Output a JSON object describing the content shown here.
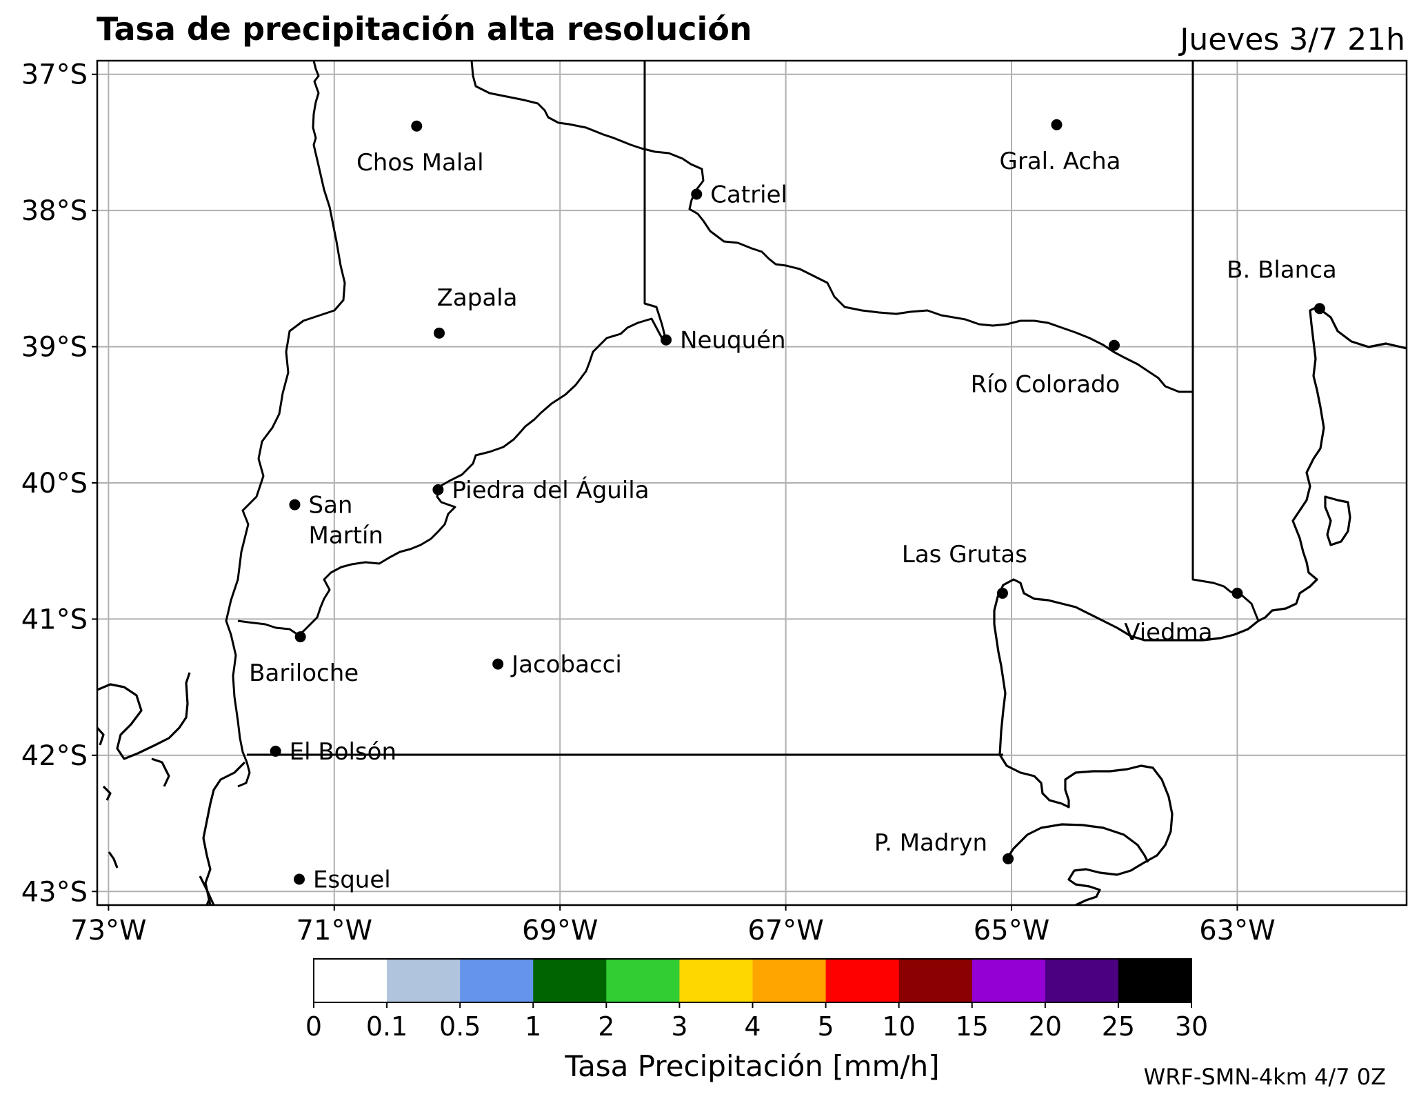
{
  "title": "Tasa de precipitación alta resolución",
  "valid_time": "Jueves 3/7 21h",
  "credit": "WRF-SMN-4km 4/7 0Z",
  "map": {
    "lon_range": [
      -73.1,
      -61.5
    ],
    "lat_range": [
      -43.1,
      -36.9
    ],
    "lat_ticks": [
      {
        "value": -37,
        "label": "37°S"
      },
      {
        "value": -38,
        "label": "38°S"
      },
      {
        "value": -39,
        "label": "39°S"
      },
      {
        "value": -40,
        "label": "40°S"
      },
      {
        "value": -41,
        "label": "41°S"
      },
      {
        "value": -42,
        "label": "42°S"
      },
      {
        "value": -43,
        "label": "43°S"
      }
    ],
    "lon_ticks": [
      {
        "value": -73,
        "label": "73°W"
      },
      {
        "value": -71,
        "label": "71°W"
      },
      {
        "value": -69,
        "label": "69°W"
      },
      {
        "value": -67,
        "label": "67°W"
      },
      {
        "value": -65,
        "label": "65°W"
      },
      {
        "value": -63,
        "label": "63°W"
      }
    ],
    "grid": true,
    "precipitation": "none"
  },
  "cities": [
    {
      "name": "Chos Malal",
      "lon": -70.27,
      "lat": -37.38,
      "label_pos": "below"
    },
    {
      "name": "Gral. Acha",
      "lon": -64.6,
      "lat": -37.37,
      "label_pos": "below"
    },
    {
      "name": "Catriel",
      "lon": -67.79,
      "lat": -37.88,
      "label_pos": "right"
    },
    {
      "name": "B. Blanca",
      "lon": -62.27,
      "lat": -38.72,
      "label_pos": "above-left"
    },
    {
      "name": "Zapala",
      "lon": -70.07,
      "lat": -38.9,
      "label_pos": "above"
    },
    {
      "name": "Neuquén",
      "lon": -68.06,
      "lat": -38.95,
      "label_pos": "right"
    },
    {
      "name": "Río Colorado",
      "lon": -64.09,
      "lat": -38.99,
      "label_pos": "below-left"
    },
    {
      "name": "San\nMartín",
      "lon": -71.35,
      "lat": -40.16,
      "label_pos": "right"
    },
    {
      "name": "Piedra del Águila",
      "lon": -70.08,
      "lat": -40.05,
      "label_pos": "right"
    },
    {
      "name": "Las Grutas",
      "lon": -65.08,
      "lat": -40.81,
      "label_pos": "above-left"
    },
    {
      "name": "Viedma",
      "lon": -63.0,
      "lat": -40.81,
      "label_pos": "below-left"
    },
    {
      "name": "Bariloche",
      "lon": -71.3,
      "lat": -41.13,
      "label_pos": "below"
    },
    {
      "name": "Jacobacci",
      "lon": -69.55,
      "lat": -41.33,
      "label_pos": "right"
    },
    {
      "name": "El Bolsón",
      "lon": -71.52,
      "lat": -41.97,
      "label_pos": "right"
    },
    {
      "name": "Esquel",
      "lon": -71.31,
      "lat": -42.91,
      "label_pos": "right"
    },
    {
      "name": "P. Madryn",
      "lon": -65.03,
      "lat": -42.76,
      "label_pos": "left"
    }
  ],
  "colorbar": {
    "label": "Tasa Precipitación [mm/h]",
    "ticks": [
      "0",
      "0.1",
      "0.5",
      "1",
      "2",
      "3",
      "4",
      "5",
      "10",
      "15",
      "20",
      "25",
      "30"
    ],
    "colors": [
      "#ffffff",
      "#b0c4de",
      "#6495ed",
      "#006400",
      "#32cd32",
      "#ffd700",
      "#ffa500",
      "#ff0000",
      "#8b0000",
      "#9400d3",
      "#4b0082",
      "#000000"
    ]
  }
}
